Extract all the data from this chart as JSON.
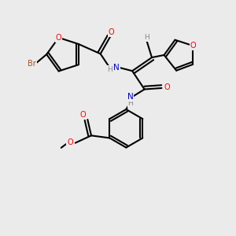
{
  "bg_color": "#ebebeb",
  "bond_color": "#000000",
  "atom_colors": {
    "O": "#ff0000",
    "N": "#0000cd",
    "Br": "#a0522d",
    "C": "#000000",
    "H": "#888888"
  }
}
